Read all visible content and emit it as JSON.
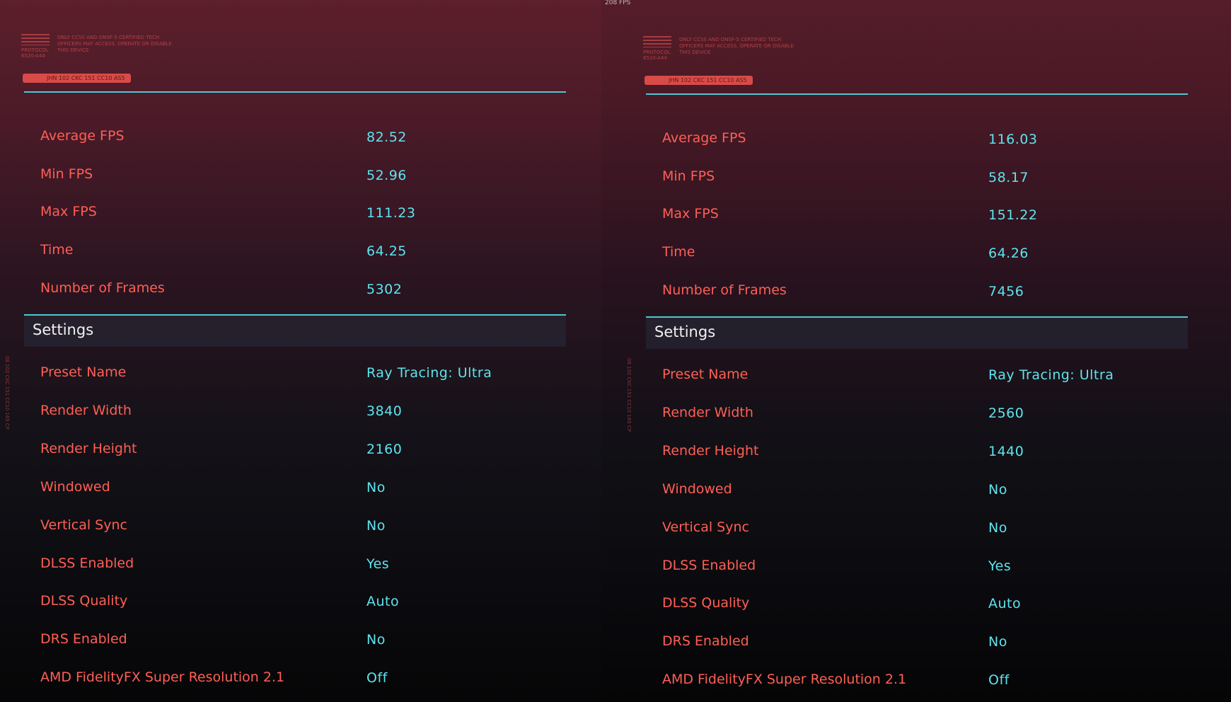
{
  "top_fps": "208 FPS",
  "panels": [
    {
      "header": {
        "protocol": "PROTOCOL",
        "protocol_code": "6520-A44",
        "notice": "ONLY CCSS AND ONSF-5 CERTIFIED TECH OFFICERS MAY ACCESS. OPERATE OR DISABLE THIS DEVICE",
        "code": "JHN 102 CKC 151 CC10 AS5",
        "side_code": "08 102 CKC 151 CC10 165 CP"
      },
      "results": [
        {
          "label": "Average FPS",
          "value": "82.52"
        },
        {
          "label": "Min FPS",
          "value": "52.96"
        },
        {
          "label": "Max FPS",
          "value": "111.23"
        },
        {
          "label": "Time",
          "value": "64.25"
        },
        {
          "label": "Number of Frames",
          "value": "5302"
        }
      ],
      "settings_title": "Settings",
      "settings": [
        {
          "label": "Preset Name",
          "value": "Ray Tracing: Ultra"
        },
        {
          "label": "Render Width",
          "value": "3840"
        },
        {
          "label": "Render Height",
          "value": "2160"
        },
        {
          "label": "Windowed",
          "value": "No"
        },
        {
          "label": "Vertical Sync",
          "value": "No"
        },
        {
          "label": "DLSS Enabled",
          "value": "Yes"
        },
        {
          "label": "DLSS Quality",
          "value": "Auto"
        },
        {
          "label": "DRS Enabled",
          "value": "No"
        },
        {
          "label": "AMD FidelityFX Super Resolution 2.1",
          "value": "Off"
        }
      ]
    },
    {
      "header": {
        "protocol": "PROTOCOL",
        "protocol_code": "6520-A44",
        "notice": "ONLY CCSS AND ONSF-5 CERTIFIED TECH OFFICERS MAY ACCESS. OPERATE OR DISABLE THIS DEVICE",
        "code": "JHN 102 CKC 151 CC10 AS5",
        "side_code": "08 102 CKC 151 CC10 165 CP"
      },
      "results": [
        {
          "label": "Average FPS",
          "value": "116.03"
        },
        {
          "label": "Min FPS",
          "value": "58.17"
        },
        {
          "label": "Max FPS",
          "value": "151.22"
        },
        {
          "label": "Time",
          "value": "64.26"
        },
        {
          "label": "Number of Frames",
          "value": "7456"
        }
      ],
      "settings_title": "Settings",
      "settings": [
        {
          "label": "Preset Name",
          "value": "Ray Tracing: Ultra"
        },
        {
          "label": "Render Width",
          "value": "2560"
        },
        {
          "label": "Render Height",
          "value": "1440"
        },
        {
          "label": "Windowed",
          "value": "No"
        },
        {
          "label": "Vertical Sync",
          "value": "No"
        },
        {
          "label": "DLSS Enabled",
          "value": "Yes"
        },
        {
          "label": "DLSS Quality",
          "value": "Auto"
        },
        {
          "label": "DRS Enabled",
          "value": "No"
        },
        {
          "label": "AMD FidelityFX Super Resolution 2.1",
          "value": "Off"
        }
      ]
    }
  ]
}
